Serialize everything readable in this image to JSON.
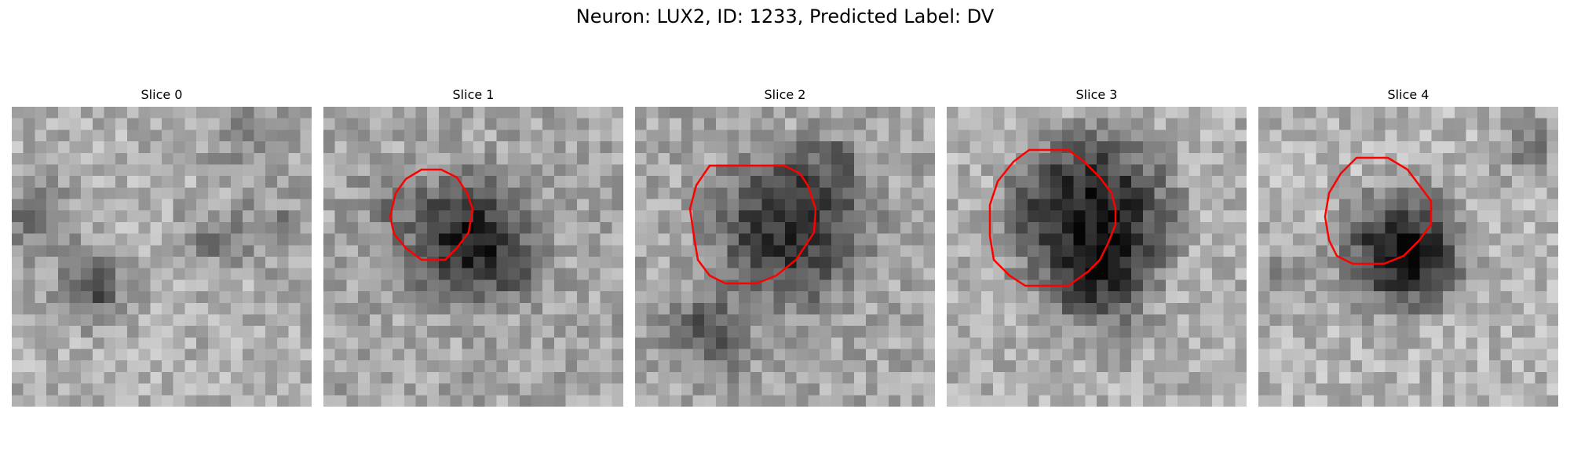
{
  "figure": {
    "title": "Neuron: LUX2, ID: 1233, Predicted Label: DV"
  },
  "panels": [
    {
      "title": "Slice 0",
      "has_outline": false
    },
    {
      "title": "Slice 1",
      "has_outline": true
    },
    {
      "title": "Slice 2",
      "has_outline": true
    },
    {
      "title": "Slice 3",
      "has_outline": true
    },
    {
      "title": "Slice 4",
      "has_outline": true
    }
  ],
  "colors": {
    "outline": "#ff0000",
    "colormap": "grayscale"
  }
}
